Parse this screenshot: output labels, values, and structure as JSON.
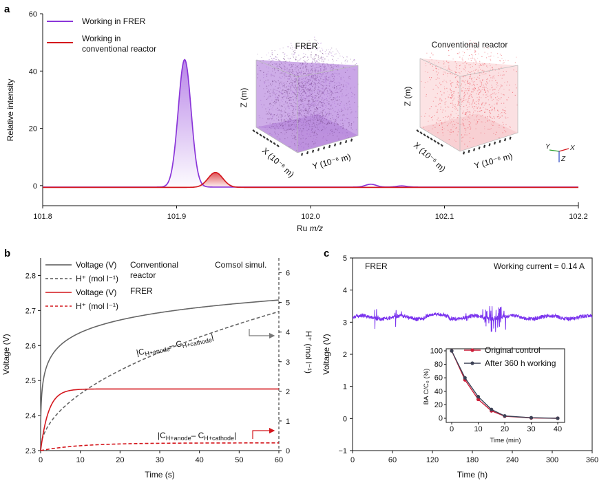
{
  "panel_labels": {
    "a": "a",
    "b": "b",
    "c": "c"
  },
  "colors": {
    "purple": "#8a35d9",
    "red": "#d4161c",
    "gray": "#666666",
    "lightpurple": "#c9a4e6",
    "pink": "#f19aa0",
    "trace_c": "#7a33ee",
    "red_inset": "#cc1f3a",
    "dark_inset": "#3d4256"
  },
  "chart_data": [
    {
      "id": "a",
      "type": "line",
      "xlabel_prefix": "Ru ",
      "xlabel_italic": "m/z",
      "ylabel": "Relative intensity",
      "xlim": [
        101.8,
        102.2
      ],
      "ylim": [
        -7,
        60
      ],
      "xticks": [
        "101.8",
        "101.9",
        "102.0",
        "102.1",
        "102.2"
      ],
      "xtick_values": [
        101.8,
        101.9,
        102.0,
        102.1,
        102.2
      ],
      "yticks": [
        "0",
        "20",
        "40",
        "60"
      ],
      "ytick_values": [
        0,
        20,
        40,
        60
      ],
      "series": [
        {
          "name": "Working in FRER",
          "baseline": -0.5,
          "peaks": [
            {
              "x": 101.906,
              "h": 44.5,
              "w": 0.0048
            },
            {
              "x": 102.045,
              "h": 1.0,
              "w": 0.004
            },
            {
              "x": 102.068,
              "h": 0.4,
              "w": 0.004
            }
          ]
        },
        {
          "name_lines": [
            "Working in",
            "conventional reactor"
          ],
          "name": "Working in conventional reactor",
          "baseline": -0.6,
          "peaks": [
            {
              "x": 101.929,
              "h": 5.2,
              "w": 0.0055
            }
          ]
        }
      ],
      "insets": [
        {
          "title": "FRER",
          "zlabel": "Z (m)",
          "xlabel": "X (10⁻⁶ m)",
          "ylabel": "Y (10⁻⁶ m)"
        },
        {
          "title": "Conventional reactor",
          "zlabel": "Z (m)",
          "xlabel": "X (10⁻⁶ m)",
          "ylabel": "Y (10⁻⁶ m)"
        }
      ],
      "triad": {
        "x": "X",
        "y": "Y",
        "z": "Z"
      }
    },
    {
      "id": "b",
      "type": "line",
      "xlabel": "Time (s)",
      "ylabel_left": "Voltage (V)",
      "ylabel_right": "H⁺ (mol l⁻¹)",
      "xlim": [
        0,
        60
      ],
      "ylim_left": [
        2.3,
        2.85
      ],
      "ylim_right": [
        0,
        6.5
      ],
      "xticks": [
        "0",
        "10",
        "20",
        "30",
        "40",
        "50",
        "60"
      ],
      "xtick_values": [
        0,
        10,
        20,
        30,
        40,
        50,
        60
      ],
      "yticks_left": [
        "2.3",
        "2.4",
        "2.5",
        "2.6",
        "2.7",
        "2.8"
      ],
      "ytick_values_left": [
        2.3,
        2.4,
        2.5,
        2.6,
        2.7,
        2.8
      ],
      "yticks_right": [
        "0",
        "1",
        "2",
        "3",
        "4",
        "5",
        "6"
      ],
      "ytick_values_right": [
        0,
        1,
        2,
        3,
        4,
        5,
        6
      ],
      "legend": {
        "group1": "Conventional reactor",
        "group2": "FRER",
        "corner": "Comsol simul.",
        "entries": [
          {
            "label": "Voltage (V)",
            "style": "solid",
            "color": "gray"
          },
          {
            "label": "H⁺ (mol l⁻¹)",
            "style": "dashed",
            "color": "gray"
          },
          {
            "label": "Voltage (V)",
            "style": "solid",
            "color": "red"
          },
          {
            "label": "H⁺ (mol l⁻¹)",
            "style": "dashed",
            "color": "red"
          }
        ]
      },
      "series": [
        {
          "name": "Conventional Voltage (V)",
          "axis": "left",
          "model": "log",
          "v0": 2.3,
          "a": 2.517,
          "b": 0.052,
          "tau": 0.05
        },
        {
          "name": "Conventional H+ (mol l-1)",
          "axis": "right",
          "model": "sqrt",
          "k": 0.6055
        },
        {
          "name": "FRER Voltage (V)",
          "axis": "left",
          "model": "exp",
          "v0": 2.3,
          "vinf": 2.476,
          "tau": 2.0
        },
        {
          "name": "FRER H+ (mol l-1)",
          "axis": "right",
          "model": "expH",
          "hinf": 0.26,
          "tau": 10
        }
      ],
      "annotations": [
        {
          "text": "|C",
          "sub1": "H+anode",
          "mid": "– C",
          "sub2": "H+cathode",
          "end": "|",
          "x": 24,
          "hval": 3.4
        },
        {
          "text": "|C",
          "sub1": "H+anode",
          "mid": "– C",
          "sub2": "H+cathode",
          "end": "|",
          "x": 30.5,
          "hval": 0.45
        }
      ]
    },
    {
      "id": "c",
      "type": "line",
      "xlabel": "Time (h)",
      "ylabel": "Voltage (V)",
      "xlim": [
        0,
        360
      ],
      "ylim": [
        -1,
        5
      ],
      "xticks": [
        "0",
        "60",
        "120",
        "180",
        "240",
        "300",
        "360"
      ],
      "xtick_values": [
        0,
        60,
        120,
        180,
        240,
        300,
        360
      ],
      "yticks": [
        "−1",
        "0",
        "1",
        "2",
        "3",
        "4",
        "5"
      ],
      "ytick_values": [
        -1,
        0,
        1,
        2,
        3,
        4,
        5
      ],
      "tag": "FRER",
      "current": "Working current = 0.14 A",
      "trace_mean": 3.15,
      "inset": {
        "type": "line",
        "xlabel": "Time (min)",
        "ylabel": "BA C/C₀ (%)",
        "xlim": [
          0,
          40
        ],
        "ylim": [
          0,
          100
        ],
        "xticks": [
          "0",
          "10",
          "20",
          "30",
          "40"
        ],
        "xtick_values": [
          0,
          10,
          20,
          30,
          40
        ],
        "yticks": [
          "0",
          "20",
          "40",
          "60",
          "80",
          "100"
        ],
        "ytick_values": [
          0,
          20,
          40,
          60,
          80,
          100
        ],
        "x": [
          0,
          5,
          10,
          15,
          20,
          30,
          40
        ],
        "series": [
          {
            "name": "Original control",
            "values": [
              100,
              57,
              28,
              11,
              3,
              0.5,
              0
            ]
          },
          {
            "name": "After 360 h working",
            "values": [
              100,
              60,
              32,
              13,
              3.5,
              0.8,
              0
            ]
          }
        ]
      }
    }
  ]
}
